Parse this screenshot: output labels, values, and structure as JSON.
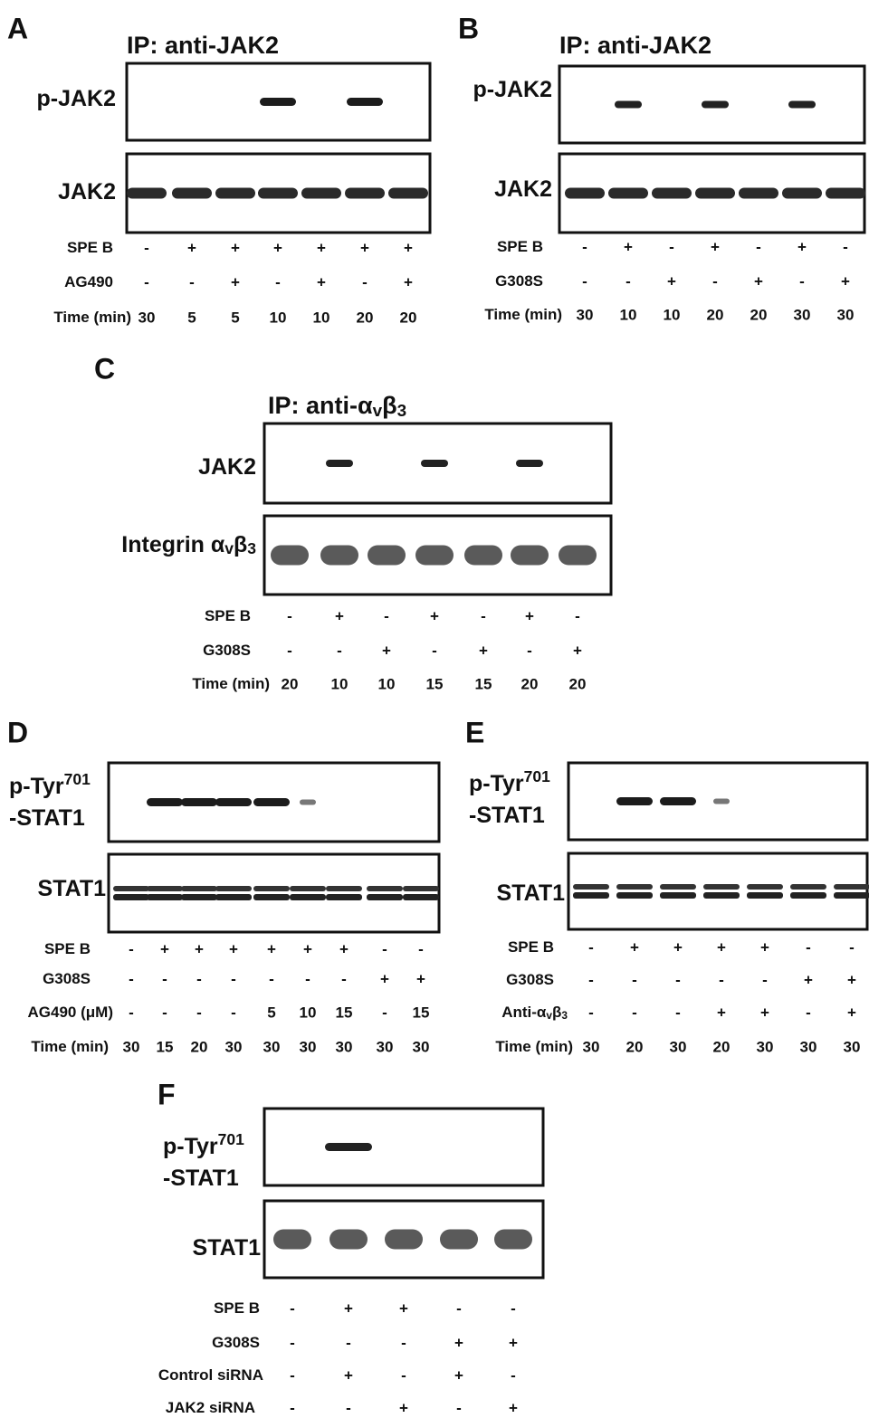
{
  "panels": [
    {
      "letter": "A",
      "ip": [
        "IP: anti-JAK2"
      ],
      "blots": [
        {
          "label": [
            [
              "p-JAK2"
            ]
          ]
        },
        {
          "label": [
            [
              "JAK2"
            ]
          ]
        }
      ],
      "rows": [
        {
          "label": [
            "SPE B"
          ],
          "cells": [
            "-",
            "+",
            "+",
            "+",
            "+",
            "+",
            "+"
          ]
        },
        {
          "label": [
            "AG490"
          ],
          "cells": [
            "-",
            "-",
            "+",
            "-",
            "+",
            "-",
            "+"
          ]
        },
        {
          "label": [
            "Time (min)"
          ],
          "cells": [
            30,
            5,
            5,
            10,
            10,
            20,
            20
          ]
        }
      ]
    },
    {
      "letter": "B",
      "ip": [
        "IP: anti-JAK2"
      ],
      "blots": [
        {
          "label": [
            [
              "p-JAK2"
            ]
          ]
        },
        {
          "label": [
            [
              "JAK2"
            ]
          ]
        }
      ],
      "rows": [
        {
          "label": [
            "SPE B"
          ],
          "cells": [
            "-",
            "+",
            "-",
            "+",
            "-",
            "+",
            "-"
          ]
        },
        {
          "label": [
            "G308S"
          ],
          "cells": [
            "-",
            "-",
            "+",
            "-",
            "+",
            "-",
            "+"
          ]
        },
        {
          "label": [
            "Time (min)"
          ],
          "cells": [
            30,
            10,
            10,
            20,
            20,
            30,
            30
          ]
        }
      ]
    },
    {
      "letter": "C",
      "ip": [
        "IP: anti-α",
        "v",
        "β",
        "3"
      ],
      "blots": [
        {
          "label": [
            [
              "JAK2"
            ]
          ]
        },
        {
          "label": [
            [
              "Integrin α",
              "v",
              "β",
              "3"
            ]
          ]
        }
      ],
      "rows": [
        {
          "label": [
            "SPE B"
          ],
          "cells": [
            "-",
            "+",
            "-",
            "+",
            "-",
            "+",
            "-"
          ]
        },
        {
          "label": [
            "G308S"
          ],
          "cells": [
            "-",
            "-",
            "+",
            "-",
            "+",
            "-",
            "+"
          ]
        },
        {
          "label": [
            "Time (min)"
          ],
          "cells": [
            20,
            10,
            10,
            15,
            15,
            20,
            20
          ]
        }
      ]
    },
    {
      "letter": "D",
      "ip": null,
      "blots": [
        {
          "label": [
            [
              "p-Tyr",
              "701"
            ],
            [
              "-STAT1"
            ]
          ]
        },
        {
          "label": [
            [
              "STAT1"
            ]
          ]
        }
      ],
      "rows": [
        {
          "label": [
            "SPE B"
          ],
          "cells": [
            "-",
            "+",
            "+",
            "+",
            "+",
            "+",
            "+",
            "-",
            "-"
          ]
        },
        {
          "label": [
            "G308S"
          ],
          "cells": [
            "-",
            "-",
            "-",
            "-",
            "-",
            "-",
            "-",
            "+",
            "+"
          ]
        },
        {
          "label": [
            "AG490 (μM)"
          ],
          "cells": [
            "-",
            "-",
            "-",
            "-",
            5,
            10,
            15,
            "-",
            15
          ]
        },
        {
          "label": [
            "Time (min)"
          ],
          "cells": [
            30,
            15,
            20,
            30,
            30,
            30,
            30,
            30,
            30
          ]
        }
      ]
    },
    {
      "letter": "E",
      "ip": null,
      "blots": [
        {
          "label": [
            [
              "p-Tyr",
              "701"
            ],
            [
              "-STAT1"
            ]
          ]
        },
        {
          "label": [
            [
              "STAT1"
            ]
          ]
        }
      ],
      "rows": [
        {
          "label": [
            "SPE B"
          ],
          "cells": [
            "-",
            "+",
            "+",
            "+",
            "+",
            "-",
            "-"
          ]
        },
        {
          "label": [
            "G308S"
          ],
          "cells": [
            "-",
            "-",
            "-",
            "-",
            "-",
            "+",
            "+"
          ]
        },
        {
          "label": [
            "Anti-α",
            "v",
            "β",
            "3"
          ],
          "cells": [
            "-",
            "-",
            "-",
            "+",
            "+",
            "-",
            "+"
          ]
        },
        {
          "label": [
            "Time (min)"
          ],
          "cells": [
            30,
            20,
            30,
            20,
            30,
            30,
            30
          ]
        }
      ]
    },
    {
      "letter": "F",
      "ip": null,
      "blots": [
        {
          "label": [
            [
              "p-Tyr",
              "701"
            ],
            [
              "-STAT1"
            ]
          ]
        },
        {
          "label": [
            [
              "STAT1"
            ]
          ]
        }
      ],
      "rows": [
        {
          "label": [
            "SPE B"
          ],
          "cells": [
            "-",
            "+",
            "+",
            "-",
            "-"
          ]
        },
        {
          "label": [
            "G308S"
          ],
          "cells": [
            "-",
            "-",
            "-",
            "+",
            "+"
          ]
        },
        {
          "label": [
            "Control siRNA"
          ],
          "cells": [
            "-",
            "+",
            "-",
            "+",
            "-"
          ]
        },
        {
          "label": [
            "JAK2 siRNA"
          ],
          "cells": [
            "-",
            "-",
            "+",
            "-",
            "+"
          ]
        }
      ]
    }
  ]
}
